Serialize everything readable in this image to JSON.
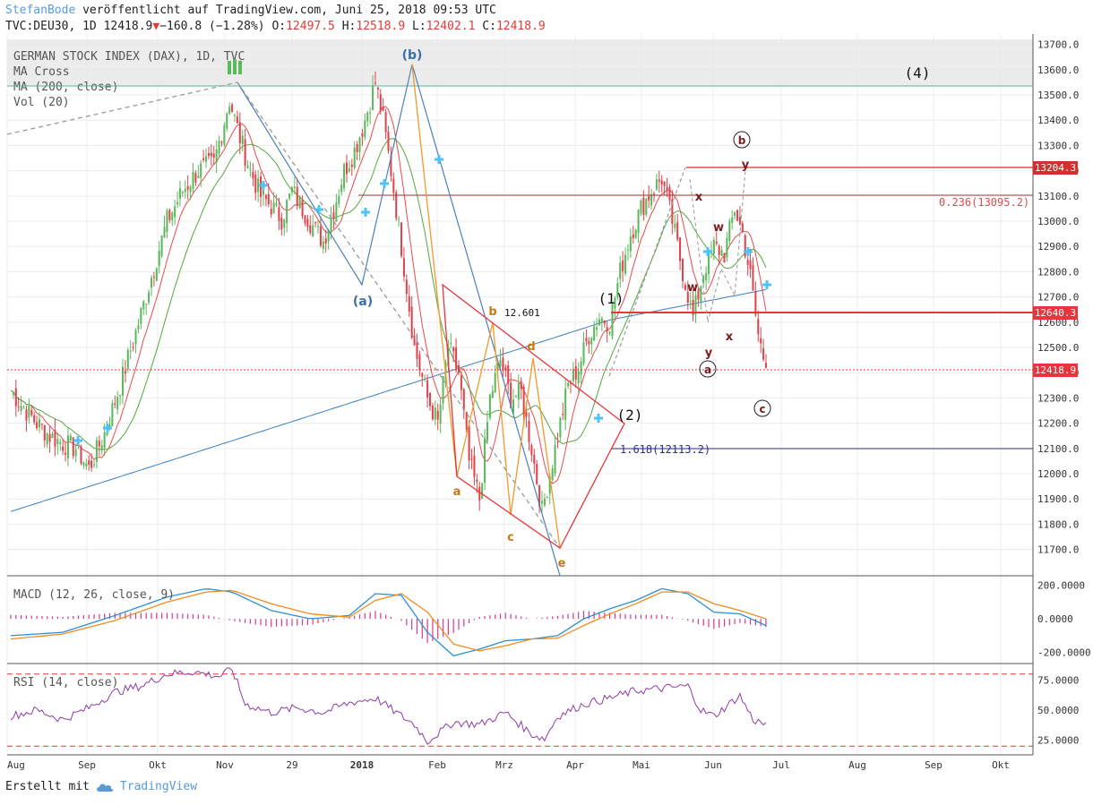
{
  "header": {
    "author": "StefanBode",
    "published": "veröffentlicht auf TradingView.com, Juni 25, 2018 09:53 UTC",
    "symbol": "TVC:DEU30, 1D",
    "last": "12418.9",
    "arrow": "▼",
    "change": "−160.8 (−1.28%)",
    "o_label": "O:",
    "o_value": "12497.5",
    "h_label": "H:",
    "h_value": "12518.9",
    "l_label": "L:",
    "l_value": "12402.1",
    "c_label": "C:",
    "c_value": "12418.9"
  },
  "legend": {
    "title": "GERMAN STOCK INDEX (DAX), 1D, TVC",
    "ma_cross": "MA Cross",
    "ma200": "MA (200, close)",
    "vol": "Vol (20)"
  },
  "colors": {
    "up": "#5cb85c",
    "down": "#e0434b",
    "ma200": "#3a7fc1",
    "fast_ma": "#e94b4b",
    "slow_ma": "#56a640",
    "macd": "#2a8fd6",
    "signal": "#f08c22",
    "histogram": "#d63a8f",
    "rsi": "#8e3ca6",
    "wave_blue": "#3b6fa5",
    "wave_orange": "#c67a14",
    "wave_dark": "#7b1c1c",
    "triangle": "#e8353c"
  },
  "chart_data": [
    {
      "type": "candlestick",
      "title": "GERMAN STOCK INDEX (DAX), 1D, TVC",
      "x_ticks": [
        "Aug",
        "Sep",
        "Okt",
        "Nov",
        "29",
        "2018",
        "Feb",
        "Mrz",
        "Apr",
        "Mai",
        "Jun",
        "Jul",
        "Aug",
        "Sep",
        "Okt"
      ],
      "y_ticks": [
        11700,
        11800,
        11900,
        12000,
        12100,
        12200,
        12300,
        12400,
        12500,
        12600,
        12700,
        12800,
        12900,
        13000,
        13100,
        13200,
        13300,
        13400,
        13500,
        13600,
        13700
      ],
      "ylim": [
        11610,
        13720
      ],
      "last_price": 12418.9,
      "price_labels": [
        "13204.3",
        "12640.3",
        "12418.9"
      ],
      "levels": [
        {
          "value": 13204.3,
          "label": "13204.3"
        },
        {
          "value": 13095.2,
          "label": "0.236(13095.2)"
        },
        {
          "value": 12640.3,
          "label": "12640.3"
        },
        {
          "value": 12113.2,
          "label": "1.618(12113.2)"
        },
        {
          "value": 12601,
          "label": "12.601"
        }
      ],
      "close_path": [
        [
          0,
          12330
        ],
        [
          5,
          12260
        ],
        [
          10,
          12200
        ],
        [
          15,
          12150
        ],
        [
          20,
          12120
        ],
        [
          25,
          12100
        ],
        [
          30,
          12020
        ],
        [
          36,
          12160
        ],
        [
          42,
          12350
        ],
        [
          48,
          12560
        ],
        [
          54,
          12780
        ],
        [
          60,
          13000
        ],
        [
          66,
          13120
        ],
        [
          72,
          13200
        ],
        [
          78,
          13230
        ],
        [
          84,
          13480
        ],
        [
          88,
          13330
        ],
        [
          92,
          13200
        ],
        [
          96,
          13100
        ],
        [
          100,
          13060
        ],
        [
          104,
          13010
        ],
        [
          108,
          13120
        ],
        [
          112,
          13050
        ],
        [
          116,
          12980
        ],
        [
          120,
          12920
        ],
        [
          124,
          13050
        ],
        [
          128,
          13200
        ],
        [
          132,
          13280
        ],
        [
          136,
          13400
        ],
        [
          140,
          13550
        ],
        [
          143,
          13400
        ],
        [
          146,
          13200
        ],
        [
          150,
          12900
        ],
        [
          155,
          12500
        ],
        [
          160,
          12300
        ],
        [
          164,
          12200
        ],
        [
          168,
          12500
        ],
        [
          172,
          12400
        ],
        [
          176,
          12050
        ],
        [
          180,
          11900
        ],
        [
          184,
          12300
        ],
        [
          188,
          12450
        ],
        [
          192,
          12300
        ],
        [
          196,
          12320
        ],
        [
          200,
          12100
        ],
        [
          204,
          11850
        ],
        [
          207,
          12000
        ],
        [
          210,
          12150
        ],
        [
          214,
          12350
        ],
        [
          218,
          12420
        ],
        [
          222,
          12550
        ],
        [
          226,
          12620
        ],
        [
          230,
          12600
        ],
        [
          234,
          12800
        ],
        [
          238,
          12950
        ],
        [
          242,
          13050
        ],
        [
          246,
          13120
        ],
        [
          250,
          13170
        ],
        [
          254,
          13000
        ],
        [
          258,
          12800
        ],
        [
          262,
          12620
        ],
        [
          266,
          12800
        ],
        [
          270,
          12900
        ],
        [
          274,
          12870
        ],
        [
          278,
          13050
        ],
        [
          281,
          12950
        ],
        [
          284,
          12780
        ],
        [
          287,
          12550
        ],
        [
          290,
          12418.9
        ]
      ],
      "annotations": [
        "(a)",
        "(b)",
        "(1)",
        "(2)",
        "(4)",
        "a",
        "b",
        "c",
        "d",
        "e",
        "w",
        "x",
        "y",
        "w",
        "x",
        "y",
        "a",
        "b",
        "c"
      ]
    },
    {
      "type": "line",
      "title": "MACD (12, 26, close, 9)",
      "y_ticks": [
        200,
        0,
        -200
      ],
      "y_tick_labels": [
        "200.0000",
        "0.0000",
        "-200.0000"
      ],
      "ylim": [
        -250,
        230
      ],
      "series": [
        {
          "name": "MACD",
          "x": [
            0,
            20,
            40,
            60,
            75,
            85,
            100,
            115,
            130,
            140,
            150,
            160,
            170,
            180,
            190,
            200,
            210,
            220,
            230,
            240,
            250,
            260,
            270,
            280,
            290
          ],
          "values": [
            -100,
            -80,
            20,
            130,
            180,
            160,
            50,
            0,
            20,
            150,
            140,
            -80,
            -220,
            -180,
            -130,
            -120,
            -100,
            0,
            60,
            110,
            180,
            150,
            40,
            30,
            -40
          ]
        },
        {
          "name": "Signal",
          "x": [
            0,
            20,
            40,
            60,
            75,
            85,
            100,
            115,
            130,
            140,
            150,
            160,
            170,
            180,
            190,
            200,
            210,
            220,
            230,
            240,
            250,
            260,
            270,
            280,
            290
          ],
          "values": [
            -120,
            -90,
            -10,
            100,
            160,
            170,
            90,
            30,
            10,
            110,
            150,
            40,
            -150,
            -190,
            -160,
            -120,
            -115,
            -40,
            30,
            90,
            160,
            160,
            90,
            50,
            0
          ]
        }
      ]
    },
    {
      "type": "line",
      "title": "RSI (14, close)",
      "y_ticks": [
        75,
        50,
        25
      ],
      "y_tick_labels": [
        "75.0000",
        "50.0000",
        "25.0000"
      ],
      "ylim": [
        15,
        85
      ],
      "bands": [
        80,
        20
      ],
      "series": [
        {
          "name": "RSI",
          "x": [
            0,
            10,
            20,
            30,
            40,
            50,
            60,
            70,
            80,
            85,
            90,
            100,
            110,
            120,
            130,
            140,
            150,
            155,
            160,
            170,
            180,
            190,
            200,
            205,
            210,
            220,
            230,
            240,
            250,
            260,
            265,
            270,
            280,
            285,
            290
          ],
          "values": [
            45,
            50,
            42,
            52,
            65,
            70,
            80,
            82,
            78,
            84,
            55,
            48,
            52,
            48,
            56,
            60,
            45,
            38,
            24,
            40,
            38,
            48,
            30,
            26,
            45,
            55,
            60,
            66,
            68,
            70,
            50,
            45,
            62,
            42,
            38
          ]
        }
      ]
    }
  ],
  "footer": {
    "created_with": "Erstellt mit",
    "brand": "TradingView"
  }
}
